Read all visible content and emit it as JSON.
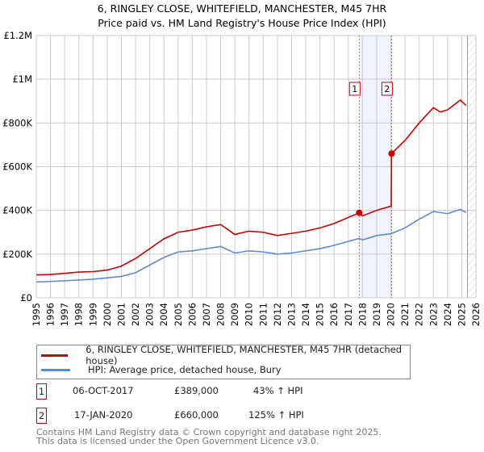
{
  "chart_data": {
    "type": "line",
    "title": "6, RINGLEY CLOSE, WHITEFIELD, MANCHESTER, M45 7HR",
    "subtitle": "Price paid vs. HM Land Registry's House Price Index (HPI)",
    "xlim": [
      1995,
      2026
    ],
    "ylim": [
      0,
      1200000
    ],
    "x_ticks": [
      "1995",
      "1996",
      "1997",
      "1998",
      "1999",
      "2000",
      "2001",
      "2002",
      "2003",
      "2004",
      "2005",
      "2006",
      "2007",
      "2008",
      "2009",
      "2010",
      "2011",
      "2012",
      "2013",
      "2014",
      "2015",
      "2016",
      "2017",
      "2018",
      "2019",
      "2020",
      "2021",
      "2022",
      "2023",
      "2024",
      "2025",
      "2026"
    ],
    "y_ticks": [
      {
        "v": 0,
        "label": "£0"
      },
      {
        "v": 200000,
        "label": "£200K"
      },
      {
        "v": 400000,
        "label": "£400K"
      },
      {
        "v": 600000,
        "label": "£600K"
      },
      {
        "v": 800000,
        "label": "£800K"
      },
      {
        "v": 1000000,
        "label": "£1M"
      },
      {
        "v": 1200000,
        "label": "£1.2M"
      }
    ],
    "grid": true,
    "series": [
      {
        "name": "6, RINGLEY CLOSE, WHITEFIELD, MANCHESTER, M45 7HR (detached house)",
        "color": "#cc0000",
        "x": [
          1995,
          1996,
          1997,
          1998,
          1999,
          2000,
          2001,
          2002,
          2003,
          2004,
          2005,
          2006,
          2007,
          2008,
          2009,
          2010,
          2011,
          2012,
          2013,
          2014,
          2015,
          2016,
          2017.77,
          2018,
          2019,
          2020.03,
          2020.05,
          2021,
          2022,
          2023,
          2023.5,
          2024,
          2024.9,
          2025.3
        ],
        "y": [
          105000,
          107000,
          112000,
          118000,
          120000,
          127000,
          145000,
          180000,
          225000,
          270000,
          300000,
          310000,
          325000,
          335000,
          290000,
          305000,
          300000,
          285000,
          295000,
          305000,
          320000,
          340000,
          389000,
          375000,
          400000,
          420000,
          660000,
          720000,
          800000,
          870000,
          850000,
          860000,
          905000,
          880000
        ]
      },
      {
        "name": "HPI: Average price, detached house, Bury",
        "color": "#5b8bd0",
        "x": [
          1995,
          1997,
          1999,
          2001,
          2002,
          2003,
          2004,
          2005,
          2006,
          2007,
          2008,
          2009,
          2010,
          2011,
          2012,
          2013,
          2014,
          2015,
          2016,
          2017.77,
          2018,
          2019,
          2020,
          2021,
          2022,
          2023,
          2024,
          2024.9,
          2025.3
        ],
        "y": [
          72000,
          78000,
          85000,
          98000,
          115000,
          150000,
          185000,
          210000,
          215000,
          225000,
          235000,
          205000,
          215000,
          210000,
          200000,
          205000,
          215000,
          225000,
          240000,
          272000,
          265000,
          285000,
          293000,
          320000,
          360000,
          395000,
          385000,
          405000,
          390000
        ]
      }
    ],
    "sales": [
      {
        "id": "1",
        "x": 2017.77,
        "y": 389000,
        "date": "06-OCT-2017",
        "price": "£389,000",
        "hpi": "43% ↑ HPI"
      },
      {
        "id": "2",
        "x": 2020.05,
        "y": 660000,
        "date": "17-JAN-2020",
        "price": "£660,000",
        "hpi": "125% ↑ HPI"
      }
    ],
    "hatch_from": 2025.4
  },
  "footer": {
    "line1": "Contains HM Land Registry data © Crown copyright and database right 2025.",
    "line2": "This data is licensed under the Open Government Licence v3.0."
  }
}
